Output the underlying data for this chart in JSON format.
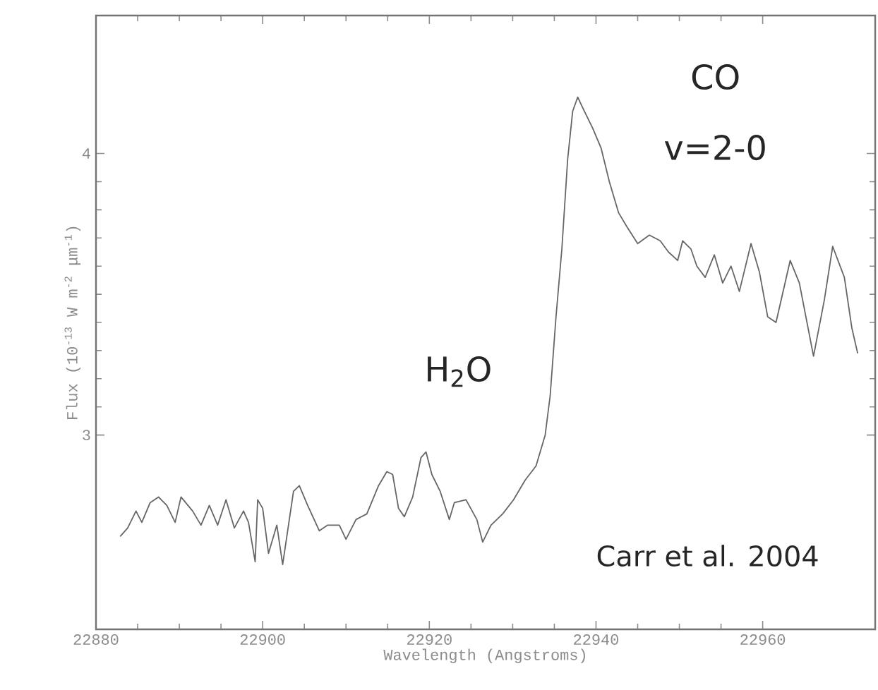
{
  "chart_data": {
    "type": "line",
    "xlabel": "Wavelength (Angstroms)",
    "ylabel": "Flux (10$^{-13}$ W m$^{-2}$ μm$^{-1}$)",
    "xlim": [
      22880,
      22973.5
    ],
    "ylim": [
      2.31,
      4.49
    ],
    "xticks": [
      22880,
      22900,
      22920,
      22940,
      22960
    ],
    "yticks": [
      3,
      4
    ],
    "grid": false,
    "marker": "none",
    "line_style": "solid",
    "annotations": [
      "H$_{2}$O",
      "CO",
      "v=2-0",
      "Carr et al. 2004"
    ],
    "series": [
      {
        "color": "#666666",
        "x": [
          22882.9,
          22883.8,
          22884.8,
          22885.5,
          22886.5,
          22887.5,
          22888.5,
          22889.5,
          22890.2,
          22891.6,
          22892.6,
          22893.6,
          22894.6,
          22895.6,
          22896.6,
          22897.7,
          22898.3,
          22899.1,
          22899.4,
          22900.0,
          22900.7,
          22901.7,
          22902.4,
          22903.7,
          22904.4,
          22905.4,
          22906.8,
          22907.8,
          22909.2,
          22910.0,
          22911.2,
          22912.5,
          22913.9,
          22914.9,
          22915.6,
          22916.3,
          22917.0,
          22918.0,
          22919.0,
          22919.6,
          22920.3,
          22921.3,
          22922.4,
          22923.0,
          22924.4,
          22925.7,
          22926.4,
          22927.4,
          22928.8,
          22930.1,
          22931.5,
          22932.8,
          22933.9,
          22934.5,
          22935.2,
          22935.9,
          22936.6,
          22937.2,
          22937.8,
          22938.6,
          22939.6,
          22940.6,
          22941.6,
          22942.7,
          22943.7,
          22945.0,
          22946.4,
          22947.7,
          22948.7,
          22949.8,
          22950.4,
          22951.4,
          22952.1,
          22953.1,
          22954.2,
          22955.2,
          22956.2,
          22957.2,
          22958.6,
          22959.6,
          22960.6,
          22961.6,
          22963.3,
          22964.4,
          22966.1,
          22967.4,
          22968.4,
          22969.8,
          22970.7,
          22971.4
        ],
        "values": [
          2.64,
          2.67,
          2.73,
          2.69,
          2.76,
          2.78,
          2.75,
          2.69,
          2.78,
          2.73,
          2.68,
          2.75,
          2.68,
          2.77,
          2.67,
          2.73,
          2.69,
          2.55,
          2.77,
          2.74,
          2.58,
          2.68,
          2.54,
          2.8,
          2.82,
          2.75,
          2.66,
          2.68,
          2.68,
          2.63,
          2.7,
          2.72,
          2.82,
          2.87,
          2.86,
          2.74,
          2.71,
          2.78,
          2.92,
          2.94,
          2.86,
          2.8,
          2.7,
          2.76,
          2.77,
          2.7,
          2.62,
          2.68,
          2.72,
          2.77,
          2.84,
          2.89,
          3.0,
          3.14,
          3.42,
          3.66,
          3.98,
          4.15,
          4.2,
          4.15,
          4.09,
          4.02,
          3.9,
          3.79,
          3.74,
          3.68,
          3.71,
          3.69,
          3.65,
          3.62,
          3.69,
          3.66,
          3.6,
          3.56,
          3.64,
          3.54,
          3.6,
          3.51,
          3.68,
          3.58,
          3.42,
          3.4,
          3.62,
          3.54,
          3.28,
          3.48,
          3.67,
          3.56,
          3.38,
          3.29
        ]
      }
    ]
  }
}
